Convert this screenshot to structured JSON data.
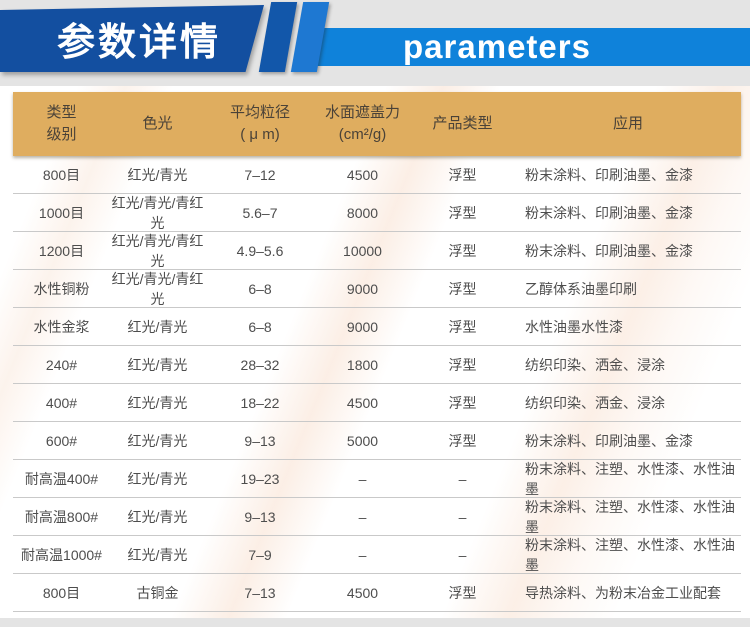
{
  "header": {
    "title_cn": "参数详情",
    "title_en": "parameters"
  },
  "colors": {
    "page_background": "#e4e4e4",
    "banner_dark_blue": "#134fa0",
    "banner_stripe_dark_blue": "#1257aa",
    "banner_stripe_bright_blue": "#1e78d2",
    "banner_light_blue": "#0f82da",
    "table_header_gold": "#dfad5f",
    "table_text": "#4d4d4d",
    "divider": "#c9c9c9"
  },
  "table": {
    "columns": [
      "类型\n级别",
      "色光",
      "平均粒径\n( μ m)",
      "水面遮盖力\n(cm²/g)",
      "产品类型",
      "应用"
    ],
    "column_keys": [
      "type-grade",
      "color-tone",
      "avg-particle-size",
      "water-coverage",
      "product-type",
      "application"
    ],
    "rows": [
      [
        "800目",
        "红光/青光",
        "7–12",
        "4500",
        "浮型",
        "粉末涂料、印刷油墨、金漆"
      ],
      [
        "1000目",
        "红光/青光/青红光",
        "5.6–7",
        "8000",
        "浮型",
        "粉末涂料、印刷油墨、金漆"
      ],
      [
        "1200目",
        "红光/青光/青红光",
        "4.9–5.6",
        "10000",
        "浮型",
        "粉末涂料、印刷油墨、金漆"
      ],
      [
        "水性铜粉",
        "红光/青光/青红光",
        "6–8",
        "9000",
        "浮型",
        "乙醇体系油墨印刷"
      ],
      [
        "水性金浆",
        "红光/青光",
        "6–8",
        "9000",
        "浮型",
        "水性油墨水性漆"
      ],
      [
        "240#",
        "红光/青光",
        "28–32",
        "1800",
        "浮型",
        "纺织印染、洒金、浸涂"
      ],
      [
        "400#",
        "红光/青光",
        "18–22",
        "4500",
        "浮型",
        "纺织印染、洒金、浸涂"
      ],
      [
        "600#",
        "红光/青光",
        "9–13",
        "5000",
        "浮型",
        "粉末涂料、印刷油墨、金漆"
      ],
      [
        "耐高温400#",
        "红光/青光",
        "19–23",
        "–",
        "–",
        "粉末涂料、注塑、水性漆、水性油墨"
      ],
      [
        "耐高温800#",
        "红光/青光",
        "9–13",
        "–",
        "–",
        "粉末涂料、注塑、水性漆、水性油墨"
      ],
      [
        "耐高温1000#",
        "红光/青光",
        "7–9",
        "–",
        "–",
        "粉末涂料、注塑、水性漆、水性油墨"
      ],
      [
        "800目",
        "古铜金",
        "7–13",
        "4500",
        "浮型",
        "导热涂料、为粉末冶金工业配套"
      ]
    ]
  }
}
